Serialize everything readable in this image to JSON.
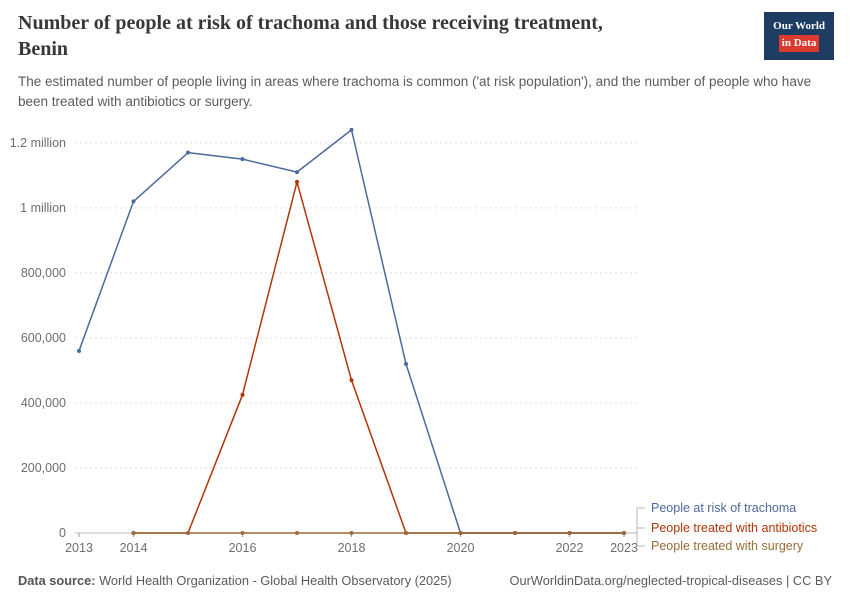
{
  "header": {
    "title_line1": "Number of people at risk of trachoma and those receiving treatment,",
    "title_line2": "Benin",
    "subtitle": "The estimated number of people living in areas where trachoma is common ('at risk population'), and the number of people who have been treated with antibiotics or surgery.",
    "logo": {
      "line1": "Our World",
      "line2": "in Data",
      "bg_color": "#1d3d63",
      "accent_color": "#dc3a2f"
    }
  },
  "chart_data": {
    "type": "line",
    "title": "Number of people at risk of trachoma and those receiving treatment, Benin",
    "xlabel": "",
    "ylabel": "",
    "xlim": [
      2013,
      2023
    ],
    "ylim": [
      0,
      1255000
    ],
    "grid": "dashed-horizontal",
    "legend_position": "right-of-line-ends",
    "x_ticks": [
      {
        "value": 2013,
        "label": "2013"
      },
      {
        "value": 2014,
        "label": "2014"
      },
      {
        "value": 2016,
        "label": "2016"
      },
      {
        "value": 2018,
        "label": "2018"
      },
      {
        "value": 2020,
        "label": "2020"
      },
      {
        "value": 2022,
        "label": "2022"
      },
      {
        "value": 2023,
        "label": "2023"
      }
    ],
    "y_ticks": [
      {
        "value": 0,
        "label": "0"
      },
      {
        "value": 200000,
        "label": "200,000"
      },
      {
        "value": 400000,
        "label": "400,000"
      },
      {
        "value": 600000,
        "label": "600,000"
      },
      {
        "value": 800000,
        "label": "800,000"
      },
      {
        "value": 1000000,
        "label": "1 million"
      },
      {
        "value": 1200000,
        "label": "1.2 million"
      }
    ],
    "series": [
      {
        "name": "People at risk of trachoma",
        "color": "#4C6A9C",
        "x": [
          2013,
          2014,
          2015,
          2016,
          2017,
          2018,
          2019,
          2020,
          2021,
          2022,
          2023
        ],
        "values": [
          560000,
          1020000,
          1170000,
          1150000,
          1110000,
          1240000,
          520000,
          0,
          0,
          0,
          0
        ]
      },
      {
        "name": "People treated with antibiotics",
        "color": "#B13507",
        "x": [
          2014,
          2015,
          2016,
          2017,
          2018,
          2019,
          2020,
          2021,
          2022,
          2023
        ],
        "values": [
          0,
          0,
          425000,
          1080000,
          470000,
          0,
          0,
          0,
          0,
          0
        ]
      },
      {
        "name": "People treated with surgery",
        "color": "#996D39",
        "x": [
          2014,
          2015,
          2016,
          2017,
          2018,
          2019,
          2020,
          2021,
          2022,
          2023
        ],
        "values": [
          0,
          0,
          0,
          0,
          0,
          0,
          0,
          0,
          0,
          0
        ]
      }
    ]
  },
  "footer": {
    "source_label": "Data source:",
    "source_text": " World Health Organization - Global Health Observatory (2025)",
    "right_text": "OurWorldinData.org/neglected-tropical-diseases | CC BY"
  }
}
